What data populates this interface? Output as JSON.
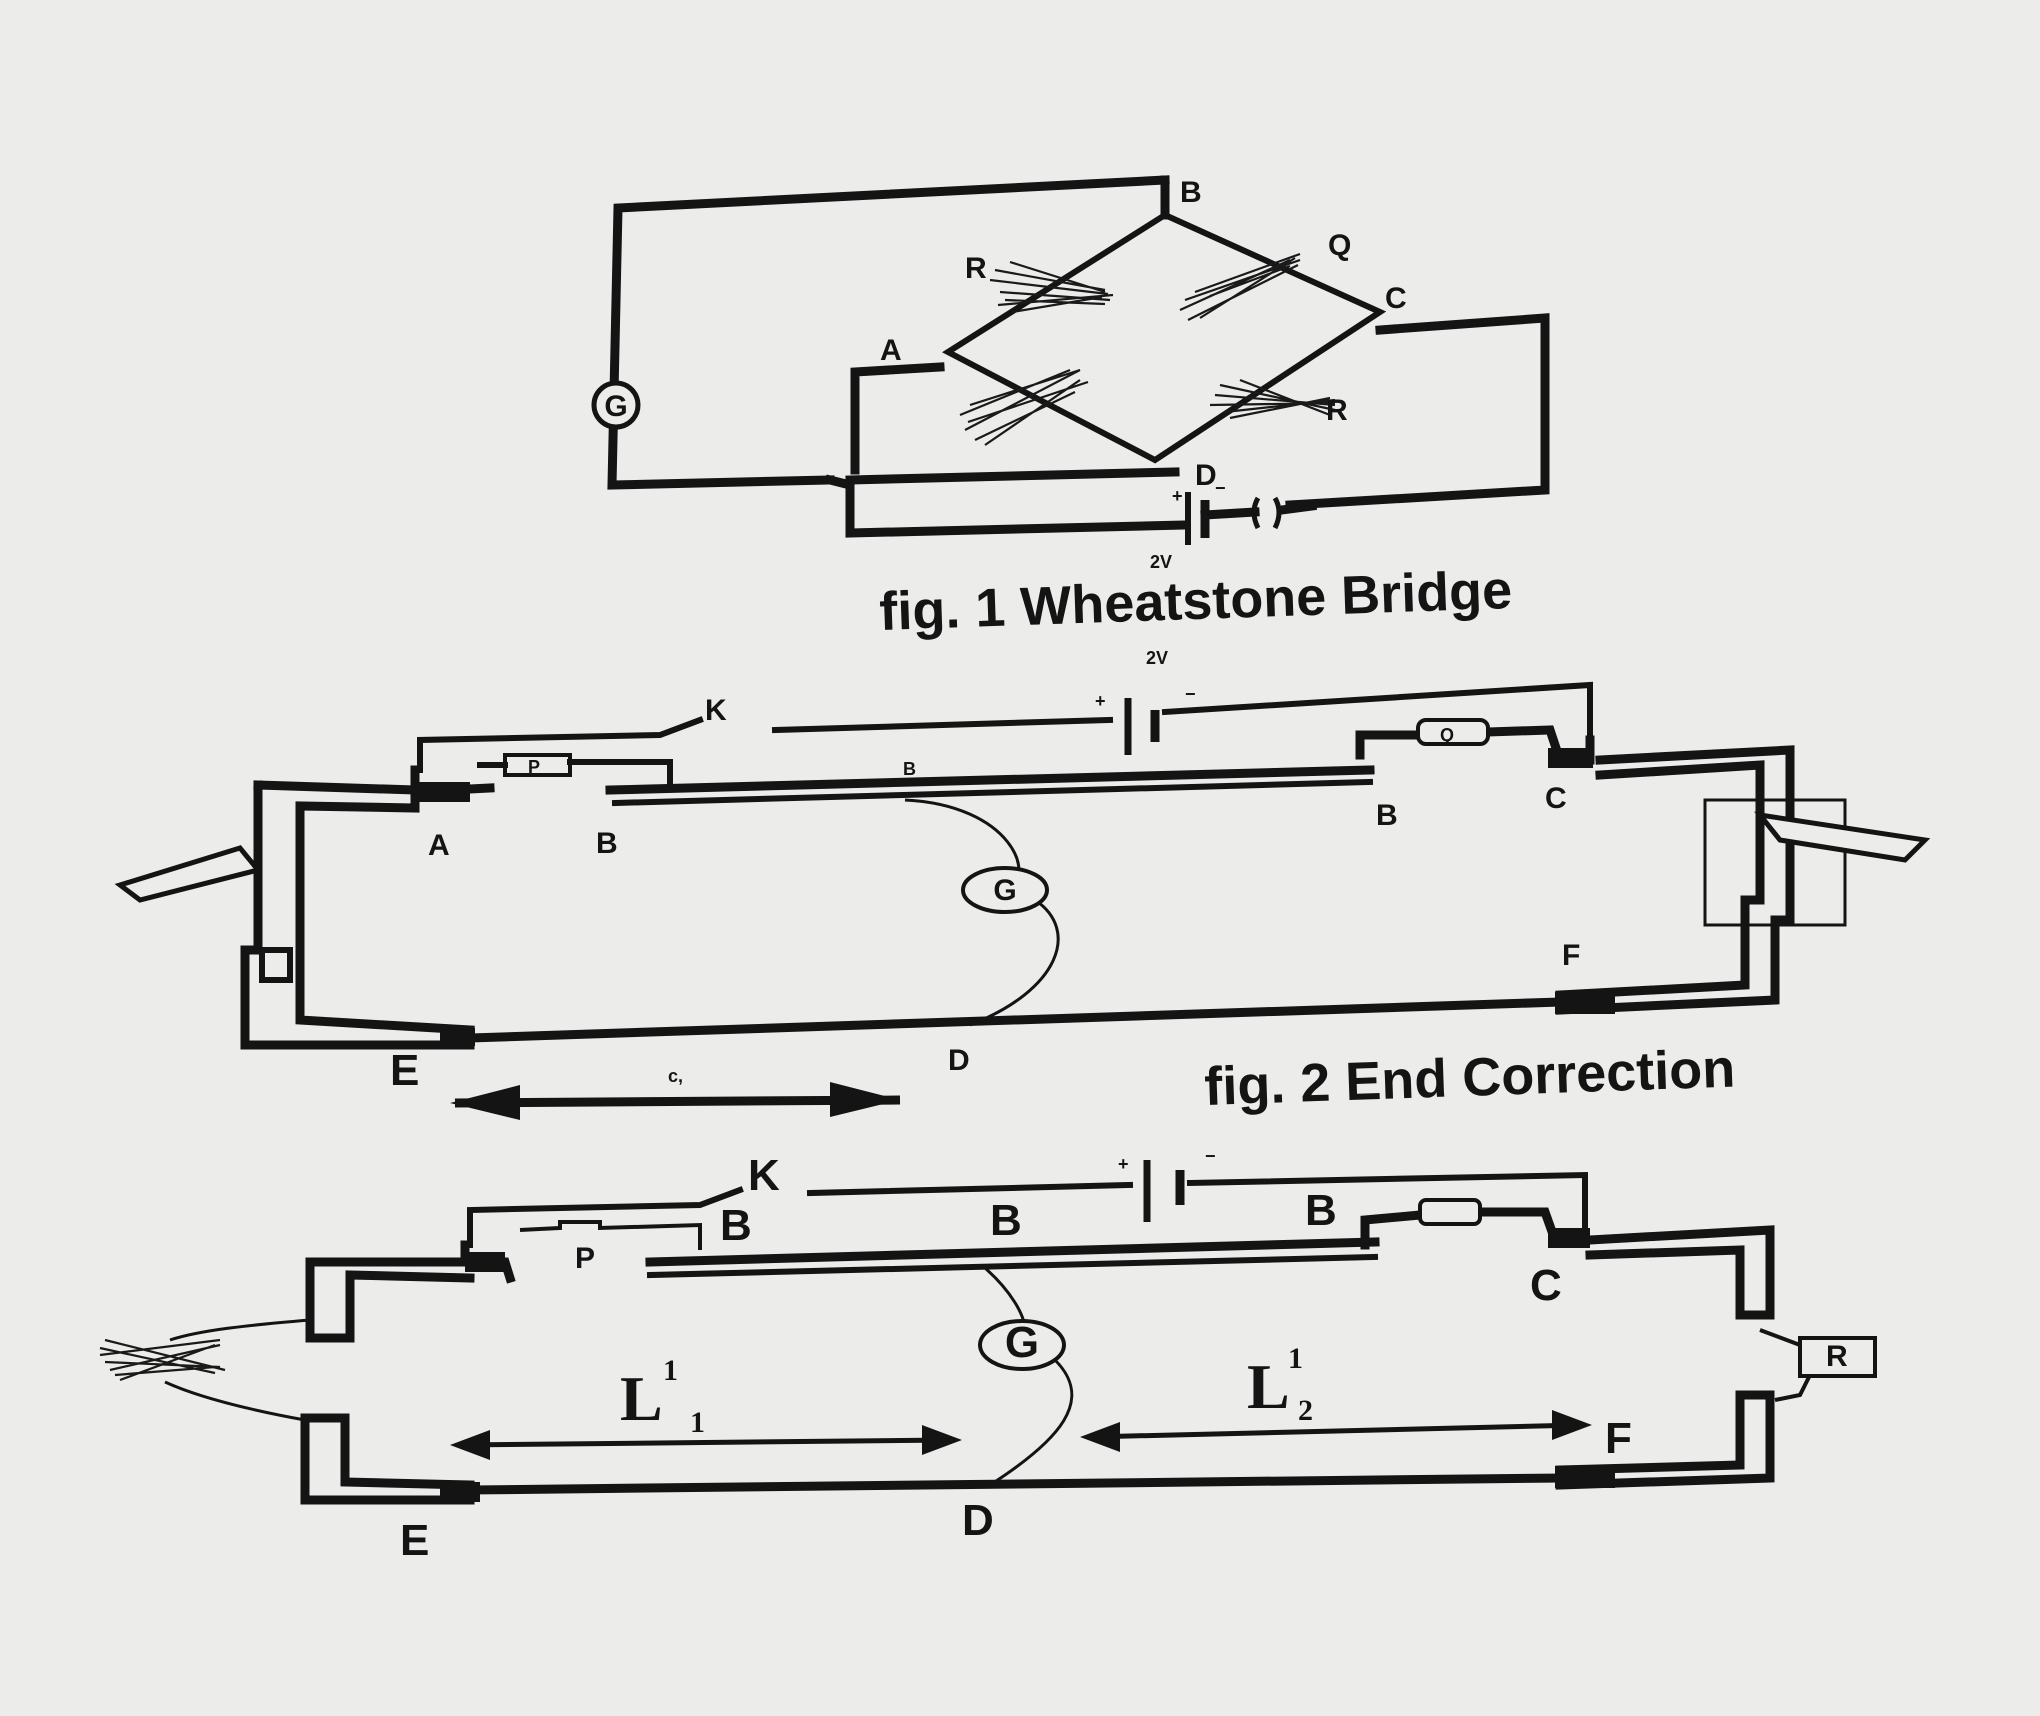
{
  "fig1": {
    "caption": "fig. 1 Wheatstone Bridge",
    "galvanometer": "G",
    "labels": {
      "A": "A",
      "B": "B",
      "C": "C",
      "D": "D",
      "R": "R",
      "Q": "Q",
      "R2": "R"
    },
    "cell_label": "2V"
  },
  "fig2": {
    "caption": "fig. 2 End Correction",
    "key": "K",
    "cell_label": "2V",
    "galvanometer": "G",
    "labels": {
      "A": "A",
      "B1": "B",
      "B_mid": "B",
      "B2": "B",
      "C": "C",
      "F": "F",
      "E": "E",
      "D": "D",
      "P": "P",
      "Q": "Q",
      "c1": "c,"
    }
  },
  "fig3": {
    "key": "K",
    "galvanometer": "G",
    "labels": {
      "P": "P",
      "B1": "B",
      "B_mid": "B",
      "B2": "B",
      "C": "C",
      "F": "F",
      "E": "E",
      "D": "D",
      "R": "R"
    },
    "L1": "L",
    "L1_sup": "1",
    "L1_sub": "1",
    "L2": "L",
    "L2_sup": "1",
    "L2_sub": "2"
  }
}
